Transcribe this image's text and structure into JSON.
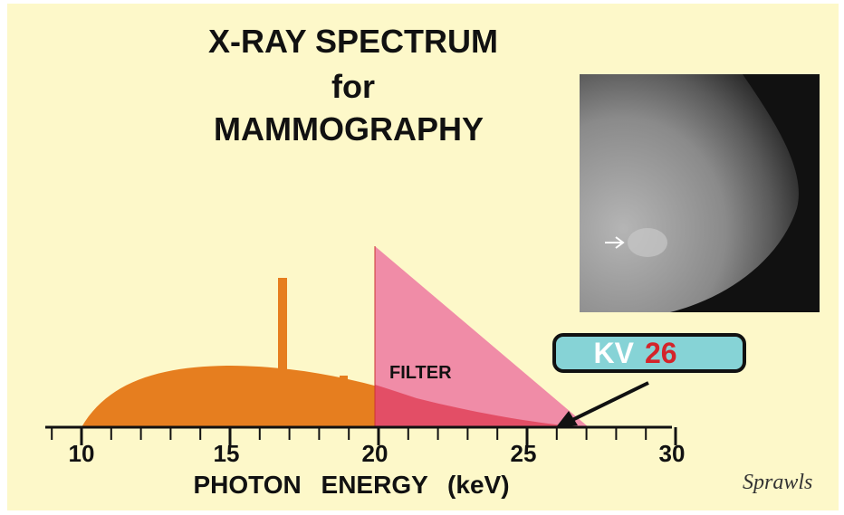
{
  "title": {
    "line1": "X-RAY SPECTRUM",
    "line2": "for",
    "line3": "MAMMOGRAPHY"
  },
  "axis": {
    "ticks": [
      "10",
      "15",
      "20",
      "25",
      "30"
    ],
    "label": "PHOTON ENERGY (keV)"
  },
  "filter_label": "FILTER",
  "kv_box": {
    "label": "KV",
    "value": "26"
  },
  "signature": "Sprawls"
}
